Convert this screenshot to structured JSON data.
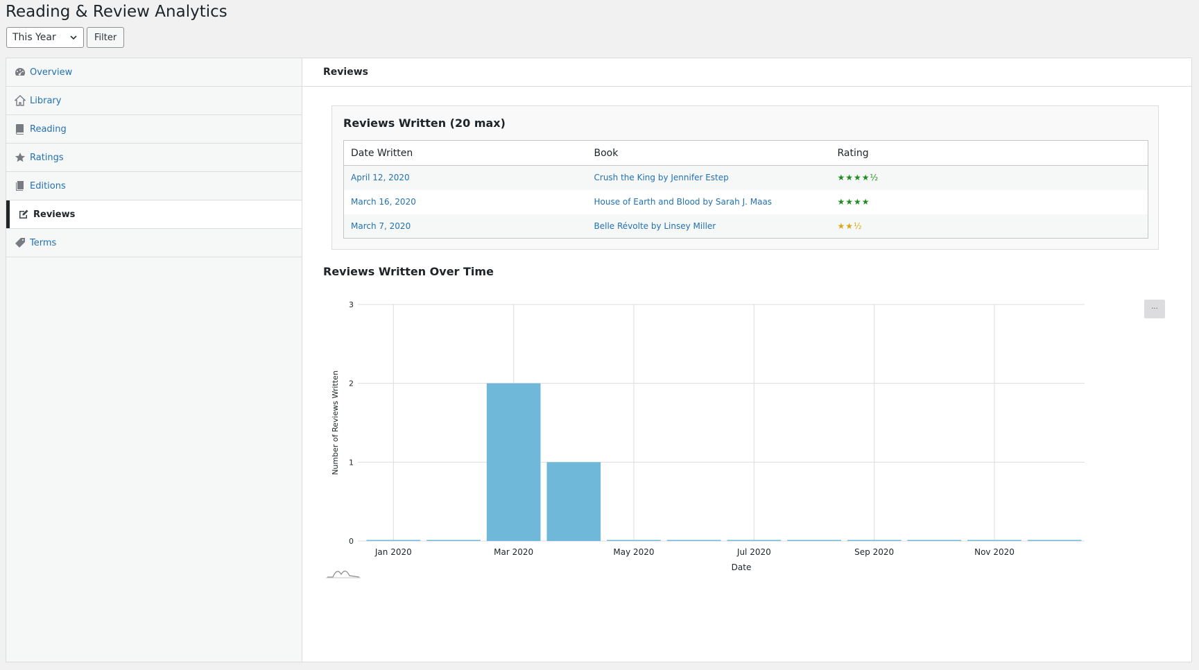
{
  "page": {
    "title": "Reading & Review Analytics"
  },
  "filter": {
    "period": "This Year",
    "filter_label": "Filter"
  },
  "sidebar": {
    "items": [
      {
        "label": "Overview",
        "icon": "dashboard-icon"
      },
      {
        "label": "Library",
        "icon": "home-icon"
      },
      {
        "label": "Reading",
        "icon": "book-icon"
      },
      {
        "label": "Ratings",
        "icon": "star-icon"
      },
      {
        "label": "Editions",
        "icon": "copy-icon"
      },
      {
        "label": "Reviews",
        "icon": "edit-icon",
        "active": true
      },
      {
        "label": "Terms",
        "icon": "tag-icon"
      }
    ]
  },
  "main": {
    "header": "Reviews",
    "reviews_card": {
      "title": "Reviews Written (20 max)",
      "columns": [
        "Date Written",
        "Book",
        "Rating"
      ],
      "rows": [
        {
          "date": "April 12, 2020",
          "book": "Crush the King by Jennifer Estep",
          "rating": "★★★★½",
          "rating_color": "#1e8c1e"
        },
        {
          "date": "March 16, 2020",
          "book": "House of Earth and Blood by Sarah J. Maas",
          "rating": "★★★★",
          "rating_color": "#1e8c1e"
        },
        {
          "date": "March 7, 2020",
          "book": "Belle Révolte by Linsey Miller",
          "rating": "★★½",
          "rating_color": "#dba617"
        }
      ]
    },
    "chart_title": "Reviews Written Over Time",
    "chart_menu_label": "···"
  },
  "chart_data": {
    "type": "bar",
    "title": "Reviews Written Over Time",
    "xlabel": "Date",
    "ylabel": "Number of Reviews Written",
    "categories": [
      "Jan 2020",
      "Feb 2020",
      "Mar 2020",
      "Apr 2020",
      "May 2020",
      "Jun 2020",
      "Jul 2020",
      "Aug 2020",
      "Sep 2020",
      "Oct 2020",
      "Nov 2020",
      "Dec 2020"
    ],
    "x_tick_labels": [
      "Jan 2020",
      "Mar 2020",
      "May 2020",
      "Jul 2020",
      "Sep 2020",
      "Nov 2020"
    ],
    "values": [
      0,
      0,
      2,
      1,
      0,
      0,
      0,
      0,
      0,
      0,
      0,
      0
    ],
    "y_ticks": [
      0,
      1,
      2,
      3
    ],
    "ylim": [
      0,
      3
    ],
    "grid": true,
    "bar_color": "#6fb8d9"
  }
}
